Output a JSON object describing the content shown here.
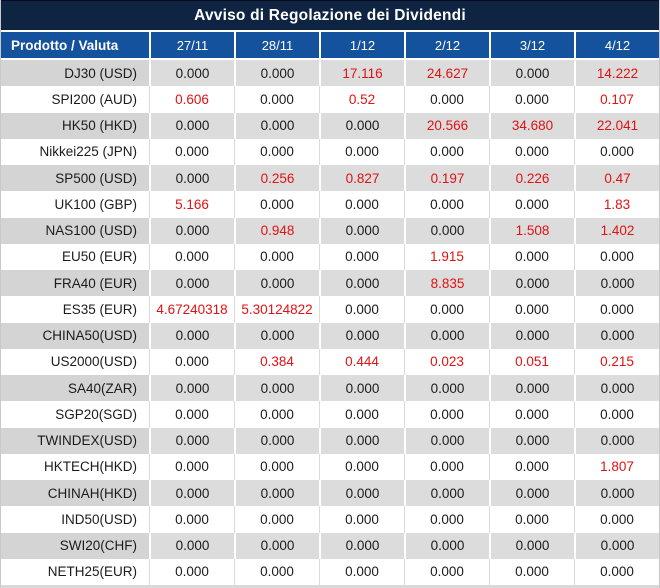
{
  "title": "Avviso di Regolazione dei Dividendi",
  "table": {
    "product_header": "Prodotto / Valuta",
    "date_headers": [
      "27/11",
      "28/11",
      "1/12",
      "2/12",
      "3/12",
      "4/12"
    ],
    "rows": [
      {
        "product": "DJ30 (USD)",
        "values": [
          "0.000",
          "0.000",
          "17.116",
          "24.627",
          "0.000",
          "14.222"
        ]
      },
      {
        "product": "SPI200 (AUD)",
        "values": [
          "0.606",
          "0.000",
          "0.52",
          "0.000",
          "0.000",
          "0.107"
        ]
      },
      {
        "product": "HK50 (HKD)",
        "values": [
          "0.000",
          "0.000",
          "0.000",
          "20.566",
          "34.680",
          "22.041"
        ]
      },
      {
        "product": "Nikkei225 (JPN)",
        "values": [
          "0.000",
          "0.000",
          "0.000",
          "0.000",
          "0.000",
          "0.000"
        ]
      },
      {
        "product": "SP500 (USD)",
        "values": [
          "0.000",
          "0.256",
          "0.827",
          "0.197",
          "0.226",
          "0.47"
        ]
      },
      {
        "product": "UK100 (GBP)",
        "values": [
          "5.166",
          "0.000",
          "0.000",
          "0.000",
          "0.000",
          "1.83"
        ]
      },
      {
        "product": "NAS100 (USD)",
        "values": [
          "0.000",
          "0.948",
          "0.000",
          "0.000",
          "1.508",
          "1.402"
        ]
      },
      {
        "product": "EU50 (EUR)",
        "values": [
          "0.000",
          "0.000",
          "0.000",
          "1.915",
          "0.000",
          "0.000"
        ]
      },
      {
        "product": "FRA40 (EUR)",
        "values": [
          "0.000",
          "0.000",
          "0.000",
          "8.835",
          "0.000",
          "0.000"
        ]
      },
      {
        "product": "ES35 (EUR)",
        "values": [
          "4.67240318",
          "5.30124822",
          "0.000",
          "0.000",
          "0.000",
          "0.000"
        ]
      },
      {
        "product": "CHINA50(USD)",
        "values": [
          "0.000",
          "0.000",
          "0.000",
          "0.000",
          "0.000",
          "0.000"
        ]
      },
      {
        "product": "US2000(USD)",
        "values": [
          "0.000",
          "0.384",
          "0.444",
          "0.023",
          "0.051",
          "0.215"
        ]
      },
      {
        "product": "SA40(ZAR)",
        "values": [
          "0.000",
          "0.000",
          "0.000",
          "0.000",
          "0.000",
          "0.000"
        ]
      },
      {
        "product": "SGP20(SGD)",
        "values": [
          "0.000",
          "0.000",
          "0.000",
          "0.000",
          "0.000",
          "0.000"
        ]
      },
      {
        "product": "TWINDEX(USD)",
        "values": [
          "0.000",
          "0.000",
          "0.000",
          "0.000",
          "0.000",
          "0.000"
        ]
      },
      {
        "product": "HKTECH(HKD)",
        "values": [
          "0.000",
          "0.000",
          "0.000",
          "0.000",
          "0.000",
          "1.807"
        ]
      },
      {
        "product": "CHINAH(HKD)",
        "values": [
          "0.000",
          "0.000",
          "0.000",
          "0.000",
          "0.000",
          "0.000"
        ]
      },
      {
        "product": "IND50(USD)",
        "values": [
          "0.000",
          "0.000",
          "0.000",
          "0.000",
          "0.000",
          "0.000"
        ]
      },
      {
        "product": "SWI20(CHF)",
        "values": [
          "0.000",
          "0.000",
          "0.000",
          "0.000",
          "0.000",
          "0.000"
        ]
      },
      {
        "product": "NETH25(EUR)",
        "values": [
          "0.000",
          "0.000",
          "0.000",
          "0.000",
          "0.000",
          "0.000"
        ]
      }
    ]
  },
  "colors": {
    "title_bg": "#0e2442",
    "header_bg": "#15529e",
    "alt_row_product_bg": "#d4d4d4",
    "alt_row_data_bg": "#dcdcdc",
    "nonzero_value_color": "#e01212",
    "zero_value_color": "#1b1b1b"
  }
}
